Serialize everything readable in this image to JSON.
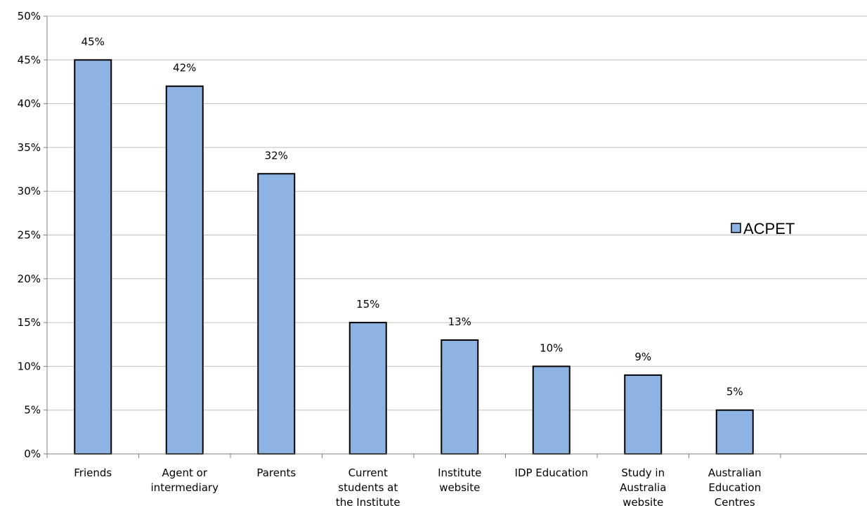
{
  "chart_data": {
    "type": "bar",
    "title": "",
    "xlabel": "",
    "ylabel": "",
    "categories": [
      [
        "Friends"
      ],
      [
        "Agent or",
        "intermediary"
      ],
      [
        "Parents"
      ],
      [
        "Current",
        "students at",
        "the Institute"
      ],
      [
        "Institute",
        "website"
      ],
      [
        "IDP Education"
      ],
      [
        "Study in",
        "Australia",
        "website"
      ],
      [
        "Australian",
        "Education",
        "Centres"
      ]
    ],
    "series": [
      {
        "name": "ACPET",
        "values": [
          45,
          42,
          32,
          15,
          13,
          10,
          9,
          5
        ],
        "color": "#8DB3E2"
      }
    ],
    "data_labels": [
      "45%",
      "42%",
      "32%",
      "15%",
      "13%",
      "10%",
      "9%",
      "5%"
    ],
    "ylim": [
      0,
      50
    ],
    "y_ticks": [
      0,
      5,
      10,
      15,
      20,
      25,
      30,
      35,
      40,
      45,
      50
    ],
    "y_tick_labels": [
      "0%",
      "5%",
      "10%",
      "15%",
      "20%",
      "25%",
      "30%",
      "35%",
      "40%",
      "45%",
      "50%"
    ],
    "grid": true,
    "legend_position": "right"
  }
}
